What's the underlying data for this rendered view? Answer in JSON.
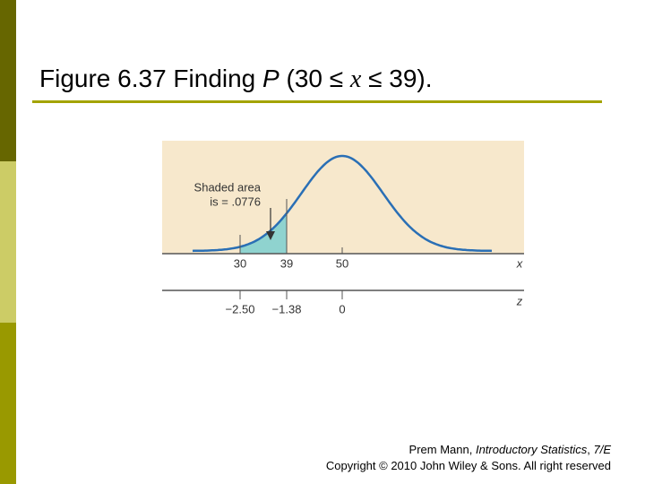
{
  "title": {
    "prefix": "Figure 6.37 Finding ",
    "p": "P",
    "mid": " (30 ≤ ",
    "x": "x",
    "suffix": " ≤ 39)."
  },
  "figure": {
    "annotation": [
      "Shaded area",
      "is = .0776"
    ],
    "x_axis": {
      "ticks": [
        "30",
        "39",
        "50"
      ],
      "label": "x"
    },
    "z_axis": {
      "ticks": [
        "−2.50",
        "−1.38",
        "0"
      ],
      "label": "z"
    }
  },
  "footer": {
    "author": "Prem Mann, ",
    "book": "Introductory Statistics",
    "sep": ", ",
    "edition": "7/E",
    "copyright": "Copyright © 2010 John Wiley & Sons. All right reserved"
  }
}
